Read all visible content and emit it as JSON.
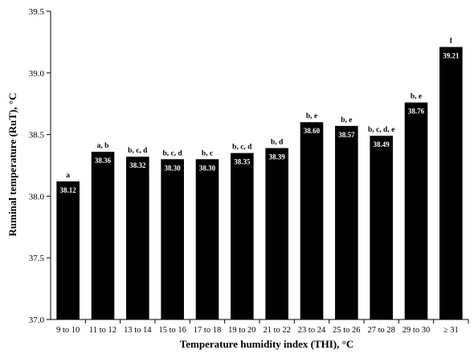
{
  "chart_data": {
    "type": "bar",
    "title": "",
    "xlabel": "Temperature humidity index (THI), °C",
    "ylabel": "Ruminal temperature (RuT), °C",
    "ylim": [
      37.0,
      39.5
    ],
    "yticks": [
      "37.0",
      "37.5",
      "38.0",
      "38.5",
      "39.0",
      "39.5"
    ],
    "grid": false,
    "legend": "none",
    "bar_color": "#000000",
    "value_label_color": "#ffffff",
    "categories": [
      "9 to 10",
      "11 to 12",
      "13 to 14",
      "15 to 16",
      "17 to 18",
      "19 to 20",
      "21 to 22",
      "23 to 24",
      "25 to 26",
      "27 to 28",
      "29 to 30",
      "≥ 31"
    ],
    "values": [
      38.12,
      38.36,
      38.32,
      38.3,
      38.3,
      38.35,
      38.39,
      38.6,
      38.57,
      38.49,
      38.76,
      39.21
    ],
    "value_labels": [
      "38.12",
      "38.36",
      "38.32",
      "38.30",
      "38.30",
      "38.35",
      "38.39",
      "38.60",
      "38.57",
      "38.49",
      "38.76",
      "39.21"
    ],
    "significance": [
      "a",
      "a, b",
      "b, c, d",
      "b, c, d",
      "b, c",
      "b, c, d",
      "b, d",
      "b, e",
      "b, e",
      "b, c, d, e",
      "b, e",
      "f"
    ]
  }
}
